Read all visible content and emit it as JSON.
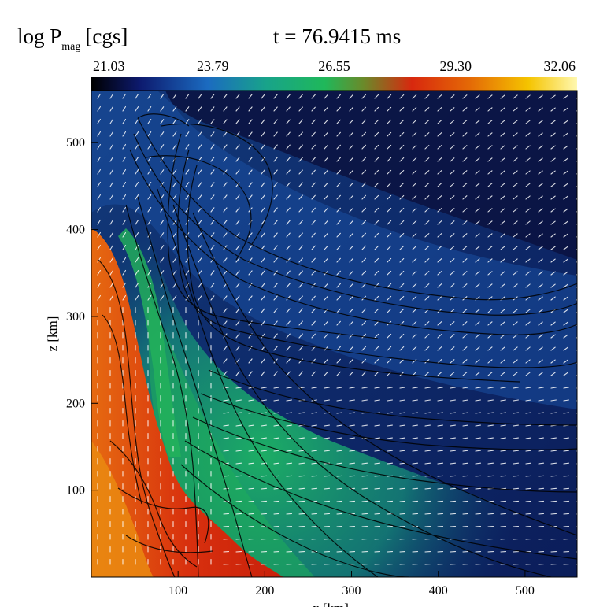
{
  "chart_data": {
    "type": "heatmap",
    "title_var": "log P",
    "title_sub": "mag",
    "title_unit": "[cgs]",
    "time_label": "t = 76.9415 ms",
    "colorbar": {
      "ticks": [
        "21.03",
        "23.79",
        "26.55",
        "29.30",
        "32.06"
      ],
      "range": [
        21.03,
        32.06
      ],
      "colors": [
        "#000000",
        "#0d1a6e",
        "#1b6bc0",
        "#18a38a",
        "#1fb85a",
        "#6a8a2a",
        "#d8280e",
        "#e46a06",
        "#f5c400",
        "#fff8b0"
      ]
    },
    "xlabel": "x [km]",
    "ylabel": "z [km]",
    "x_ticks": [
      100,
      200,
      300,
      400,
      500
    ],
    "y_ticks": [
      100,
      200,
      300,
      400,
      500
    ],
    "xlim": [
      0,
      560
    ],
    "ylim": [
      0,
      560
    ],
    "overlays": [
      "magnetic field lines (black contours)",
      "velocity vectors (white arrows)"
    ]
  }
}
